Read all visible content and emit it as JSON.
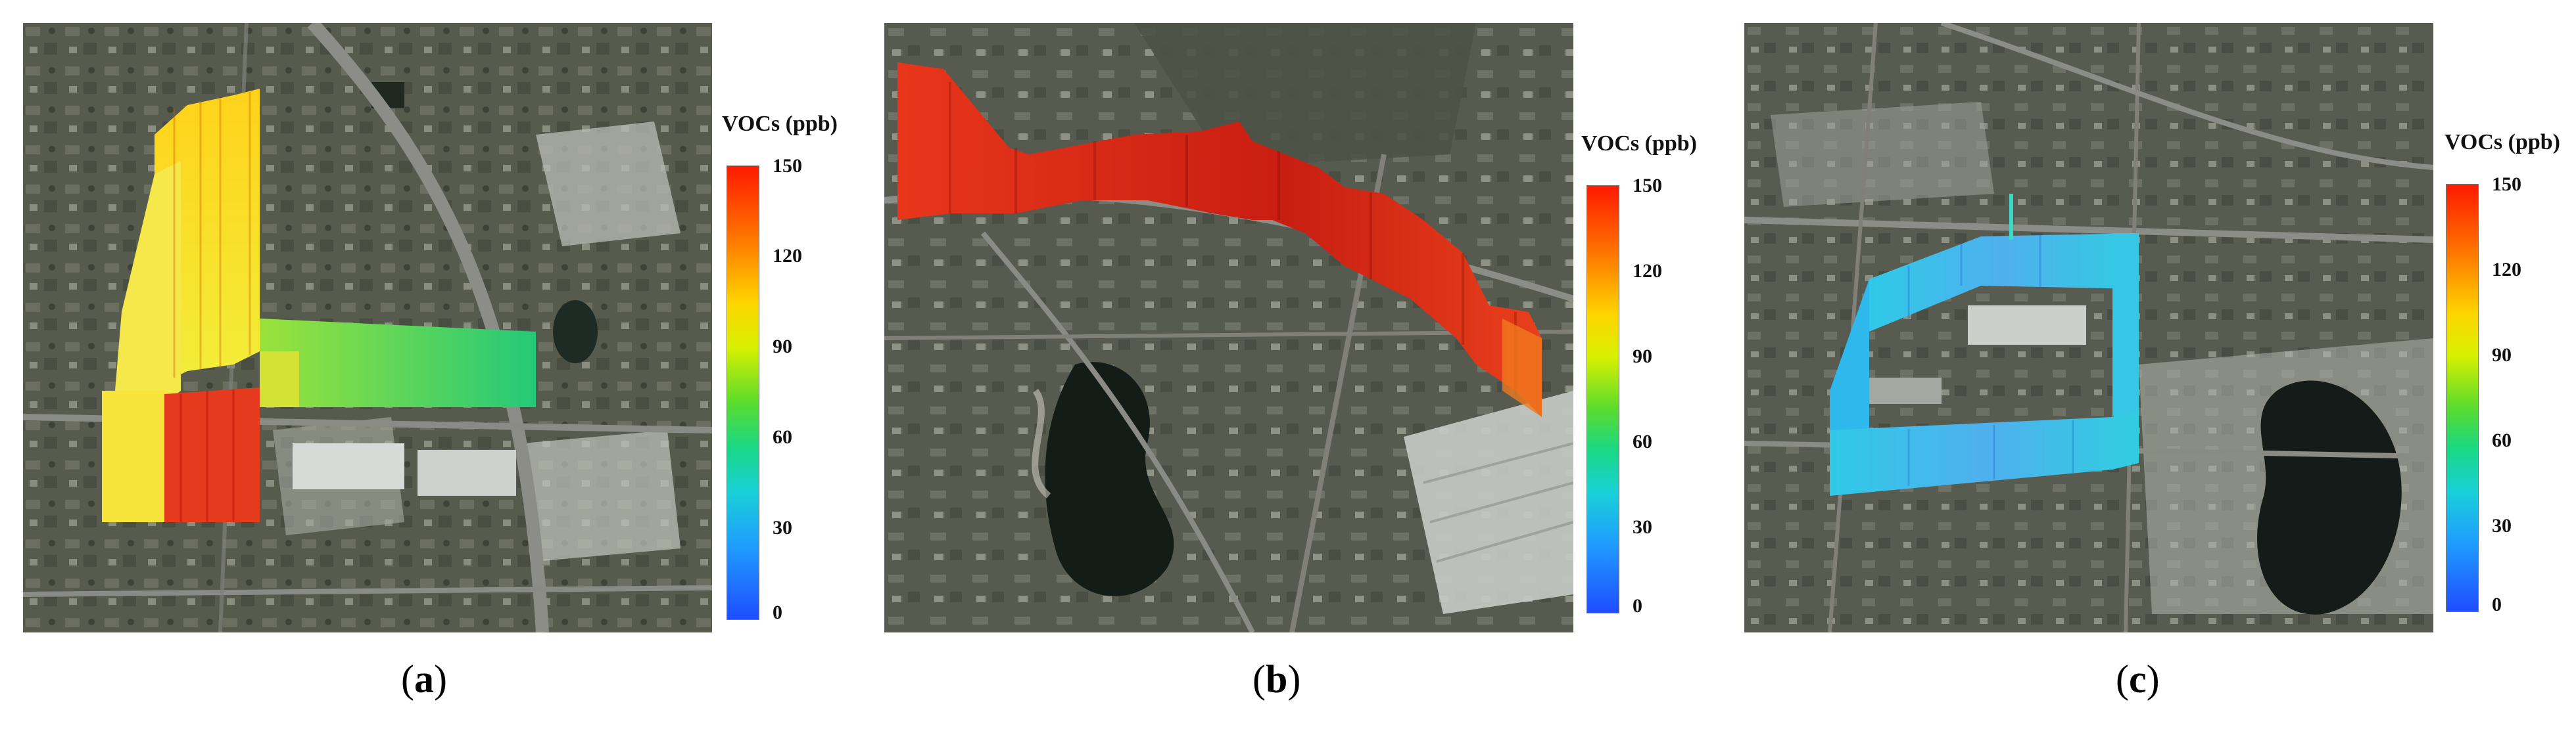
{
  "colorbar": {
    "title": "VOCs (ppb)",
    "ticks": [
      "150",
      "120",
      "90",
      "60",
      "30",
      "0"
    ]
  },
  "panels": [
    {
      "letter": "a"
    },
    {
      "letter": "b"
    },
    {
      "letter": "c"
    }
  ],
  "colors": {
    "low": "#1f4dff",
    "mid": "#5cdc2c",
    "high": "#ff1a00"
  }
}
